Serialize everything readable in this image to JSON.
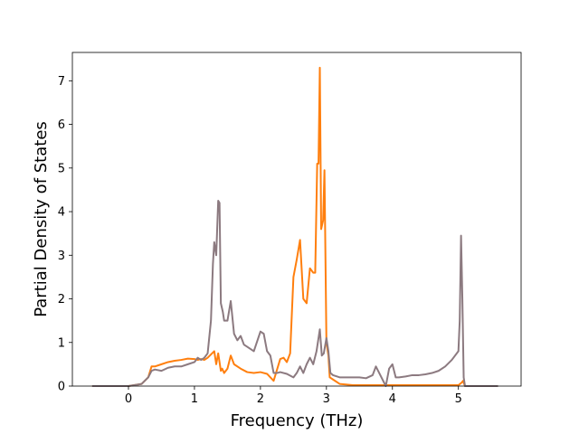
{
  "chart_data": {
    "type": "line",
    "title": "",
    "xlabel": "Frequency (THz)",
    "ylabel": "Partial Density of States",
    "xlim": [
      -0.85,
      5.95
    ],
    "ylim": [
      0,
      7.65
    ],
    "xticks": [
      0,
      1,
      2,
      3,
      4,
      5
    ],
    "yticks": [
      0,
      1,
      2,
      3,
      4,
      5,
      6,
      7
    ],
    "grid": false,
    "legend": "none",
    "series": [
      {
        "color": "#ff7f0e",
        "x": [
          -0.55,
          0.0,
          0.2,
          0.3,
          0.35,
          0.4,
          0.5,
          0.6,
          0.7,
          0.8,
          0.9,
          1.0,
          1.05,
          1.1,
          1.15,
          1.2,
          1.3,
          1.33,
          1.36,
          1.4,
          1.42,
          1.45,
          1.5,
          1.55,
          1.6,
          1.7,
          1.8,
          1.9,
          2.0,
          2.1,
          2.2,
          2.3,
          2.35,
          2.4,
          2.45,
          2.5,
          2.55,
          2.6,
          2.65,
          2.7,
          2.75,
          2.8,
          2.83,
          2.86,
          2.88,
          2.9,
          2.92,
          2.95,
          2.97,
          3.0,
          3.03,
          3.05,
          3.1,
          3.2,
          3.4,
          3.6,
          3.8,
          4.0,
          4.5,
          5.0,
          5.05,
          5.07,
          5.1,
          5.6
        ],
        "y": [
          0.0,
          0.0,
          0.05,
          0.2,
          0.45,
          0.45,
          0.5,
          0.55,
          0.58,
          0.6,
          0.63,
          0.62,
          0.6,
          0.62,
          0.6,
          0.65,
          0.8,
          0.5,
          0.75,
          0.35,
          0.4,
          0.3,
          0.4,
          0.7,
          0.5,
          0.4,
          0.32,
          0.3,
          0.32,
          0.28,
          0.12,
          0.62,
          0.65,
          0.55,
          0.75,
          2.5,
          2.9,
          3.35,
          2.0,
          1.9,
          2.7,
          2.6,
          2.6,
          5.1,
          5.1,
          7.3,
          3.6,
          3.8,
          4.95,
          1.0,
          0.7,
          0.2,
          0.15,
          0.05,
          0.02,
          0.02,
          0.02,
          0.02,
          0.02,
          0.02,
          0.08,
          0.12,
          0.0,
          0.0
        ]
      },
      {
        "color": "#8c7a80",
        "x": [
          -0.55,
          0.0,
          0.2,
          0.3,
          0.35,
          0.4,
          0.5,
          0.6,
          0.7,
          0.8,
          0.9,
          1.0,
          1.05,
          1.1,
          1.15,
          1.2,
          1.25,
          1.28,
          1.3,
          1.33,
          1.36,
          1.38,
          1.4,
          1.43,
          1.45,
          1.5,
          1.55,
          1.58,
          1.6,
          1.65,
          1.7,
          1.75,
          1.8,
          1.9,
          2.0,
          2.05,
          2.1,
          2.15,
          2.2,
          2.25,
          2.3,
          2.4,
          2.5,
          2.55,
          2.6,
          2.65,
          2.7,
          2.75,
          2.8,
          2.85,
          2.9,
          2.93,
          2.96,
          3.0,
          3.03,
          3.06,
          3.1,
          3.2,
          3.5,
          3.6,
          3.7,
          3.75,
          3.8,
          3.9,
          3.95,
          4.0,
          4.05,
          4.1,
          4.2,
          4.3,
          4.4,
          4.5,
          4.6,
          4.7,
          4.8,
          4.9,
          5.0,
          5.02,
          5.04,
          5.06,
          5.08,
          5.1,
          5.6
        ],
        "y": [
          0.0,
          0.0,
          0.05,
          0.2,
          0.35,
          0.38,
          0.35,
          0.42,
          0.45,
          0.45,
          0.5,
          0.55,
          0.65,
          0.6,
          0.65,
          0.75,
          1.5,
          2.8,
          3.3,
          3.0,
          4.25,
          4.2,
          1.9,
          1.7,
          1.5,
          1.5,
          1.95,
          1.5,
          1.2,
          1.05,
          1.15,
          0.95,
          0.9,
          0.8,
          1.25,
          1.2,
          0.8,
          0.7,
          0.3,
          0.3,
          0.32,
          0.28,
          0.2,
          0.3,
          0.45,
          0.3,
          0.5,
          0.65,
          0.5,
          0.8,
          1.3,
          0.7,
          0.75,
          1.1,
          0.8,
          0.3,
          0.25,
          0.2,
          0.2,
          0.18,
          0.25,
          0.45,
          0.3,
          0.0,
          0.4,
          0.5,
          0.2,
          0.2,
          0.22,
          0.25,
          0.25,
          0.27,
          0.3,
          0.35,
          0.45,
          0.6,
          0.8,
          1.5,
          3.45,
          2.0,
          0.2,
          0.0,
          0.0
        ]
      }
    ]
  }
}
